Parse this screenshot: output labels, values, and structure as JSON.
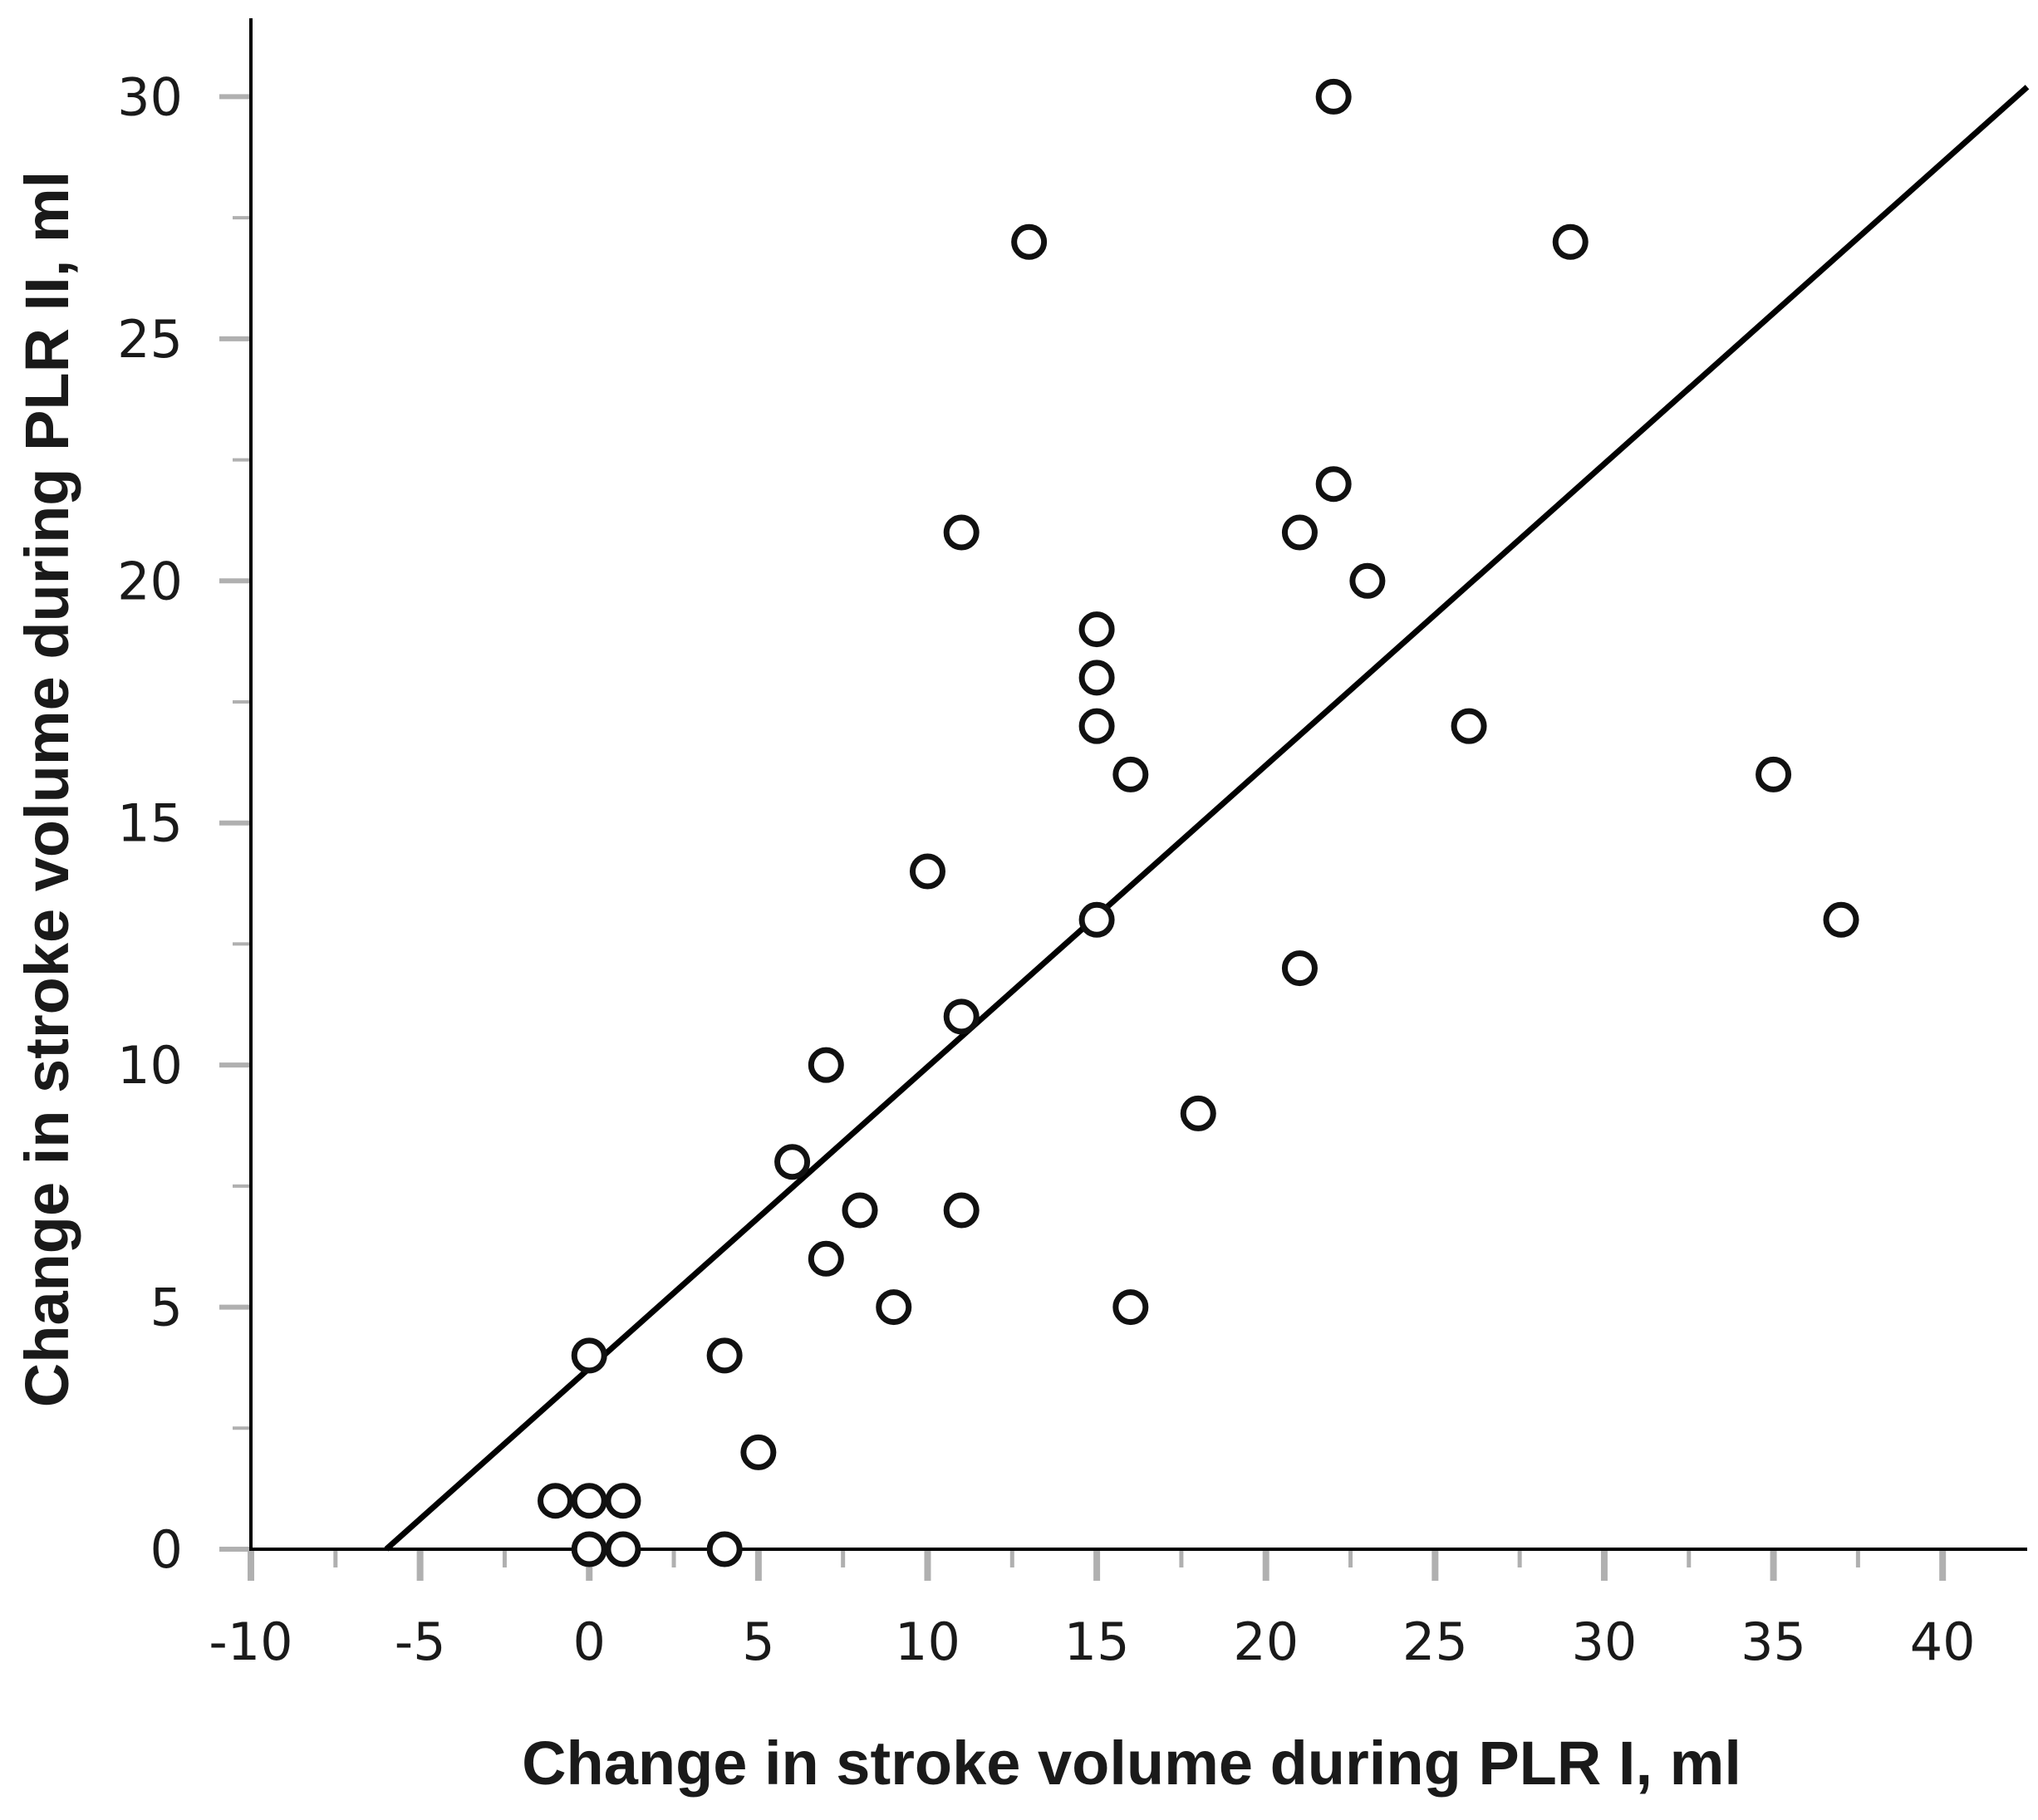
{
  "chart_data": {
    "type": "scatter",
    "title": "",
    "xlabel": "Change in stroke volume during PLR I, ml",
    "ylabel": "Change in stroke volume during PLR II, ml",
    "xlim": [
      -10,
      42.5
    ],
    "ylim": [
      0,
      31.5
    ],
    "xticks": [
      "-10",
      "-5",
      "0",
      "5",
      "10",
      "15",
      "20",
      "25",
      "30",
      "35",
      "40"
    ],
    "yticks": [
      "0",
      "5",
      "10",
      "15",
      "20",
      "25",
      "30"
    ],
    "xtick_values": [
      -10,
      -5,
      0,
      5,
      10,
      15,
      20,
      25,
      30,
      35,
      40
    ],
    "ytick_values": [
      0,
      5,
      10,
      15,
      20,
      25,
      30
    ],
    "grid": false,
    "series": [
      {
        "name": "observations",
        "marker": "open-circle",
        "points": [
          {
            "x": 22,
            "y": 30
          },
          {
            "x": 13,
            "y": 27
          },
          {
            "x": 29,
            "y": 27
          },
          {
            "x": 22,
            "y": 22
          },
          {
            "x": 11,
            "y": 21
          },
          {
            "x": 21,
            "y": 21
          },
          {
            "x": 23,
            "y": 20
          },
          {
            "x": 15,
            "y": 19
          },
          {
            "x": 15,
            "y": 18
          },
          {
            "x": 15,
            "y": 17
          },
          {
            "x": 26,
            "y": 17
          },
          {
            "x": 16,
            "y": 16
          },
          {
            "x": 35,
            "y": 16
          },
          {
            "x": 10,
            "y": 14
          },
          {
            "x": 15,
            "y": 13
          },
          {
            "x": 37,
            "y": 13
          },
          {
            "x": 21,
            "y": 12
          },
          {
            "x": 11,
            "y": 11
          },
          {
            "x": 7,
            "y": 10
          },
          {
            "x": 18,
            "y": 9
          },
          {
            "x": 6,
            "y": 8
          },
          {
            "x": 8,
            "y": 7
          },
          {
            "x": 11,
            "y": 7
          },
          {
            "x": 7,
            "y": 6
          },
          {
            "x": 9,
            "y": 5
          },
          {
            "x": 16,
            "y": 5
          },
          {
            "x": 0,
            "y": 4
          },
          {
            "x": 4,
            "y": 4
          },
          {
            "x": 5,
            "y": 2
          },
          {
            "x": -1,
            "y": 1
          },
          {
            "x": 0,
            "y": 1
          },
          {
            "x": 1,
            "y": 1
          },
          {
            "x": 0,
            "y": 0
          },
          {
            "x": 1,
            "y": 0
          },
          {
            "x": 4,
            "y": 0
          }
        ]
      }
    ],
    "fit_line": {
      "name": "linear fit",
      "x": [
        -6,
        42.5
      ],
      "y": [
        0,
        30.2
      ]
    },
    "colors": {
      "marker": "#111111",
      "line": "#000000",
      "axis": "#000000",
      "tick_mark": "#b0b0b0",
      "text": "#1a1a1a"
    }
  }
}
